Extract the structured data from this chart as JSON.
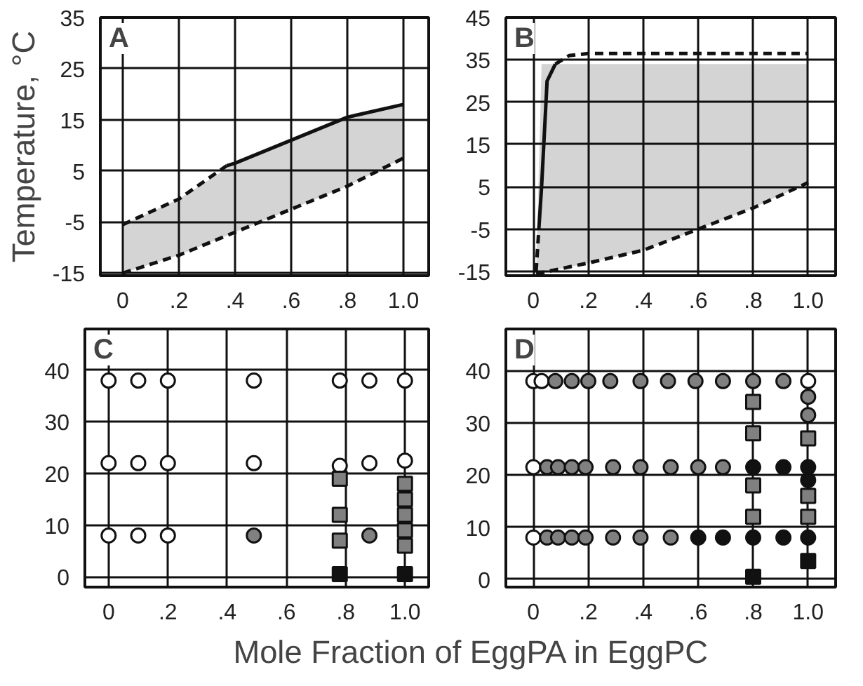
{
  "chart_data": [
    {
      "type": "line",
      "annotations": [
        "A"
      ],
      "ylabel": "Temperature, °C",
      "xlim": [
        -0.08,
        1.09
      ],
      "ylim": [
        -15.5,
        35
      ],
      "xticks": [
        0,
        {
          "value": 0.2,
          "label": ".2"
        },
        {
          "value": 0.4,
          "label": ".4"
        },
        {
          "value": 0.6,
          "label": ".6"
        },
        {
          "value": 0.8,
          "label": ".8"
        },
        {
          "value": 1.0,
          "label": "1.0"
        }
      ],
      "yticks": [
        -15,
        -5,
        5,
        15,
        25,
        35
      ],
      "grid": true,
      "series": [
        {
          "type": "line",
          "color": "#111111",
          "line_style": "dashed",
          "x": [
            0,
            0.2,
            0.4,
            0.6,
            0.8,
            1.0
          ],
          "values": [
            -15,
            -11.5,
            -7,
            -2.5,
            2,
            7.5
          ],
          "lower": [
            -15,
            -11.5,
            -7,
            -2.5,
            2,
            7.5
          ],
          "upper": [
            -5.5,
            -0.5,
            6.5,
            11,
            15.5,
            18
          ]
        },
        {
          "type": "line",
          "color": "#111111",
          "line_style": "dashed",
          "x": [
            0,
            0.2,
            0.37
          ],
          "values": [
            -5.5,
            -0.5,
            6
          ]
        },
        {
          "type": "line",
          "color": "#111111",
          "line_style": "solid",
          "x": [
            0.37,
            0.4,
            0.6,
            0.8,
            1.0
          ],
          "values": [
            6,
            6.5,
            11,
            15.5,
            18
          ]
        }
      ]
    },
    {
      "type": "line",
      "annotations": [
        "B"
      ],
      "xlim": [
        -0.1,
        1.1
      ],
      "ylim": [
        -16,
        45
      ],
      "xticks": [
        0,
        {
          "value": 0.2,
          "label": ".2"
        },
        {
          "value": 0.4,
          "label": ".4"
        },
        {
          "value": 0.6,
          "label": ".6"
        },
        {
          "value": 0.8,
          "label": ".8"
        },
        {
          "value": 1.0,
          "label": "1.0"
        }
      ],
      "yticks": [
        -15,
        -5,
        5,
        15,
        25,
        35,
        45
      ],
      "grid": true,
      "series": [
        {
          "type": "line",
          "color": "#111111",
          "line_style": "dashed",
          "x": [
            0.01,
            0.03,
            0.2,
            0.4,
            0.6,
            0.8,
            1.0
          ],
          "values": [
            -15.5,
            -15.3,
            -13,
            -10,
            -5,
            0,
            6
          ],
          "lower": [
            -15.5,
            -15.3,
            -13,
            -10,
            -5,
            0,
            6
          ],
          "upper": [
            -15.5,
            34,
            34,
            34,
            34,
            34,
            34
          ]
        },
        {
          "type": "line",
          "color": "#111111",
          "line_style": "dashed",
          "x": [
            0.01,
            0.02
          ],
          "values": [
            -15,
            -5
          ]
        },
        {
          "type": "line",
          "color": "#111111",
          "line_style": "solid",
          "x": [
            0.02,
            0.03,
            0.05,
            0.08
          ],
          "values": [
            -5,
            5,
            30,
            34
          ]
        },
        {
          "type": "line",
          "color": "#111111",
          "line_style": "dashed",
          "x": [
            0.08,
            0.13,
            0.2,
            1.0
          ],
          "values": [
            34,
            36,
            36.5,
            36.5
          ]
        }
      ]
    },
    {
      "type": "scatter",
      "annotations": [
        "C"
      ],
      "xlabel": "Mole Fraction of EggPA in EggPC",
      "xlim": [
        -0.08,
        1.08
      ],
      "ylim": [
        -2,
        48
      ],
      "xticks": [
        0,
        {
          "value": 0.2,
          "label": ".2"
        },
        {
          "value": 0.4,
          "label": ".4"
        },
        {
          "value": 0.6,
          "label": ".6"
        },
        {
          "value": 0.8,
          "label": ".8"
        },
        {
          "value": 1.0,
          "label": "1.0"
        }
      ],
      "yticks": [
        0,
        10,
        20,
        30,
        40
      ],
      "grid": true,
      "series": [
        {
          "marker": "circle",
          "color": "#ffffff",
          "x": [
            0,
            0.1,
            0.2,
            0.49,
            0.78,
            0.88,
            1.0,
            0,
            0.1,
            0.2,
            0.49,
            0.78,
            0.88,
            1.0,
            0,
            0.1,
            0.2
          ],
          "values": [
            38,
            38,
            38,
            38,
            38,
            38,
            38,
            22,
            22,
            22,
            22,
            21.5,
            22,
            22.5,
            8,
            8,
            8
          ]
        },
        {
          "marker": "circle",
          "color": "#808080",
          "x": [
            0.49,
            0.88
          ],
          "values": [
            8,
            8
          ]
        },
        {
          "marker": "square",
          "color": "#808080",
          "x": [
            0.78,
            0.78,
            0.78,
            1.0,
            1.0,
            1.0,
            1.0,
            1.0
          ],
          "values": [
            19,
            12,
            7,
            18,
            15,
            12,
            9,
            6
          ]
        },
        {
          "marker": "square",
          "color": "#111111",
          "x": [
            0.78,
            1.0
          ],
          "values": [
            0.5,
            0.5
          ]
        }
      ]
    },
    {
      "type": "scatter",
      "annotations": [
        "D"
      ],
      "xlim": [
        -0.1,
        1.1
      ],
      "ylim": [
        -1.5,
        48
      ],
      "xticks": [
        0,
        {
          "value": 0.2,
          "label": ".2"
        },
        {
          "value": 0.4,
          "label": ".4"
        },
        {
          "value": 0.6,
          "label": ".6"
        },
        {
          "value": 0.8,
          "label": ".8"
        },
        {
          "value": 1.0,
          "label": "1.0"
        }
      ],
      "yticks": [
        0,
        10,
        20,
        30,
        40
      ],
      "grid": true,
      "series": [
        {
          "marker": "circle",
          "color": "#ffffff",
          "x": [
            0,
            0.03,
            1.0,
            0,
            0
          ],
          "values": [
            38,
            38,
            38,
            21.5,
            8
          ]
        },
        {
          "marker": "circle",
          "color": "#808080",
          "x": [
            0.08,
            0.14,
            0.2,
            0.28,
            0.39,
            0.49,
            0.59,
            0.69,
            0.8,
            0.91,
            0.05,
            0.09,
            0.14,
            0.19,
            0.29,
            0.39,
            0.5,
            0.6,
            0.69,
            0.05,
            0.09,
            0.14,
            0.19,
            0.29,
            0.39,
            0.5,
            1.0,
            1.0
          ],
          "values": [
            38,
            38,
            38,
            38,
            38,
            38,
            38,
            38,
            38,
            38,
            21.5,
            21.5,
            21.5,
            21.5,
            21.5,
            21.5,
            21.5,
            21.5,
            21.5,
            8,
            8,
            8,
            8,
            8,
            8,
            8,
            35,
            31.5
          ]
        },
        {
          "marker": "circle",
          "color": "#111111",
          "x": [
            0.8,
            0.91,
            1.0,
            0.6,
            0.69,
            0.8,
            0.91,
            1.0,
            1.0
          ],
          "values": [
            21.5,
            21.5,
            21.5,
            8,
            8,
            8,
            8,
            8,
            19
          ]
        },
        {
          "marker": "square",
          "color": "#808080",
          "x": [
            0.8,
            0.8,
            0.8,
            0.8,
            1.0,
            1.0,
            1.0
          ],
          "values": [
            34,
            28,
            18,
            12,
            27,
            16,
            12
          ]
        },
        {
          "marker": "square",
          "color": "#111111",
          "x": [
            0.8,
            1.0
          ],
          "values": [
            0.5,
            3.5
          ]
        }
      ]
    }
  ]
}
